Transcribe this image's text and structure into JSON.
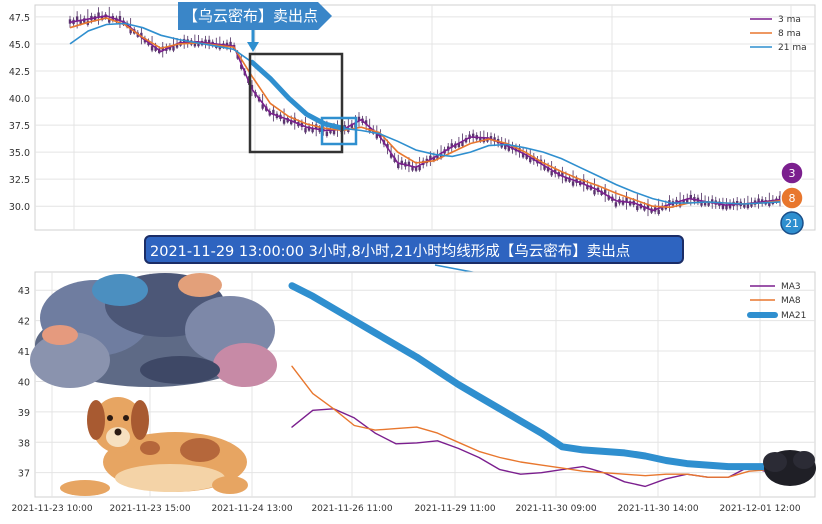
{
  "banner_top": "【乌云密布】卖出点",
  "banner_mid": "2021-11-29 13:00:00 3小时,8小时,21小时均线形成【乌云密布】卖出点",
  "badges": [
    "3",
    "8",
    "21"
  ],
  "colors": {
    "ma3": "#7b1f8e",
    "ma8": "#e8772e",
    "ma21": "#2f8fcf",
    "banner_bg": "#3a86c8",
    "banner_mid_bg": "#2e64c0",
    "box": "#333333"
  },
  "chart_data": [
    {
      "type": "line",
      "title": "",
      "ylim": [
        27.8,
        48.6
      ],
      "y_ticks": [
        "30.0",
        "32.5",
        "35.0",
        "37.5",
        "40.0",
        "42.5",
        "45.0",
        "47.5"
      ],
      "legend": "top-right",
      "grid": true,
      "series": [
        {
          "name": "3 ma",
          "values": [
            47.0,
            47.3,
            47.6,
            47.0,
            45.5,
            44.3,
            45.1,
            45.2,
            45.0,
            44.8,
            40.8,
            38.6,
            38.0,
            37.3,
            37.0,
            37.1,
            38.0,
            36.5,
            34.0,
            33.6,
            34.5,
            35.5,
            36.4,
            36.3,
            35.6,
            34.8,
            33.8,
            32.8,
            32.2,
            31.5,
            30.5,
            30.3,
            29.6,
            30.2,
            30.7,
            30.4,
            30.1,
            30.2,
            30.4,
            30.6
          ]
        },
        {
          "name": "8 ma",
          "values": [
            46.5,
            47.0,
            47.4,
            46.8,
            45.6,
            44.6,
            45.0,
            45.1,
            44.9,
            44.7,
            42.0,
            39.5,
            38.3,
            37.6,
            37.2,
            37.0,
            37.3,
            36.8,
            35.0,
            34.0,
            34.2,
            35.0,
            35.8,
            36.2,
            35.8,
            35.0,
            34.0,
            33.2,
            32.5,
            31.9,
            31.2,
            30.6,
            30.0,
            29.9,
            30.3,
            30.4,
            30.3,
            30.2,
            30.3,
            30.5
          ]
        },
        {
          "name": "21 ma",
          "values": [
            45.0,
            46.2,
            46.8,
            46.9,
            46.5,
            45.8,
            45.4,
            45.1,
            44.8,
            44.5,
            43.3,
            41.8,
            40.0,
            38.5,
            37.6,
            37.2,
            37.0,
            36.7,
            36.0,
            35.2,
            34.8,
            34.6,
            35.0,
            35.6,
            35.7,
            35.4,
            35.0,
            34.4,
            33.6,
            32.8,
            32.0,
            31.3,
            30.7,
            30.3,
            30.3,
            30.4,
            30.3,
            30.2,
            30.3,
            30.4
          ]
        }
      ]
    },
    {
      "type": "line",
      "title": "",
      "ylim": [
        36.2,
        43.6
      ],
      "y_ticks": [
        "37",
        "38",
        "39",
        "40",
        "41",
        "42",
        "43"
      ],
      "x_ticks": [
        "2021-11-23 10:00",
        "2021-11-23 15:00",
        "2021-11-24 13:00",
        "2021-11-26 11:00",
        "2021-11-29 11:00",
        "2021-11-30 09:00",
        "2021-11-30 14:00",
        "2021-12-01 12:00"
      ],
      "legend": "top-right",
      "grid": true,
      "series": [
        {
          "name": "MA3",
          "values": [
            38.5,
            39.05,
            39.1,
            38.8,
            38.3,
            37.95,
            37.98,
            38.05,
            37.8,
            37.5,
            37.1,
            36.95,
            37.0,
            37.1,
            37.2,
            37.0,
            36.7,
            36.55,
            36.8,
            36.95,
            36.85,
            36.85,
            37.2,
            37.0
          ]
        },
        {
          "name": "MA8",
          "values": [
            40.5,
            39.6,
            39.1,
            38.55,
            38.4,
            38.45,
            38.5,
            38.3,
            38.0,
            37.7,
            37.5,
            37.35,
            37.25,
            37.15,
            37.05,
            37.0,
            36.95,
            36.9,
            36.95,
            36.95,
            36.85,
            36.85,
            37.05,
            37.1
          ]
        },
        {
          "name": "MA21",
          "values": [
            43.15,
            42.8,
            42.4,
            42.0,
            41.6,
            41.2,
            40.8,
            40.35,
            39.9,
            39.5,
            39.1,
            38.7,
            38.3,
            37.85,
            37.75,
            37.7,
            37.65,
            37.55,
            37.4,
            37.3,
            37.25,
            37.2,
            37.2,
            37.2
          ]
        }
      ]
    }
  ]
}
